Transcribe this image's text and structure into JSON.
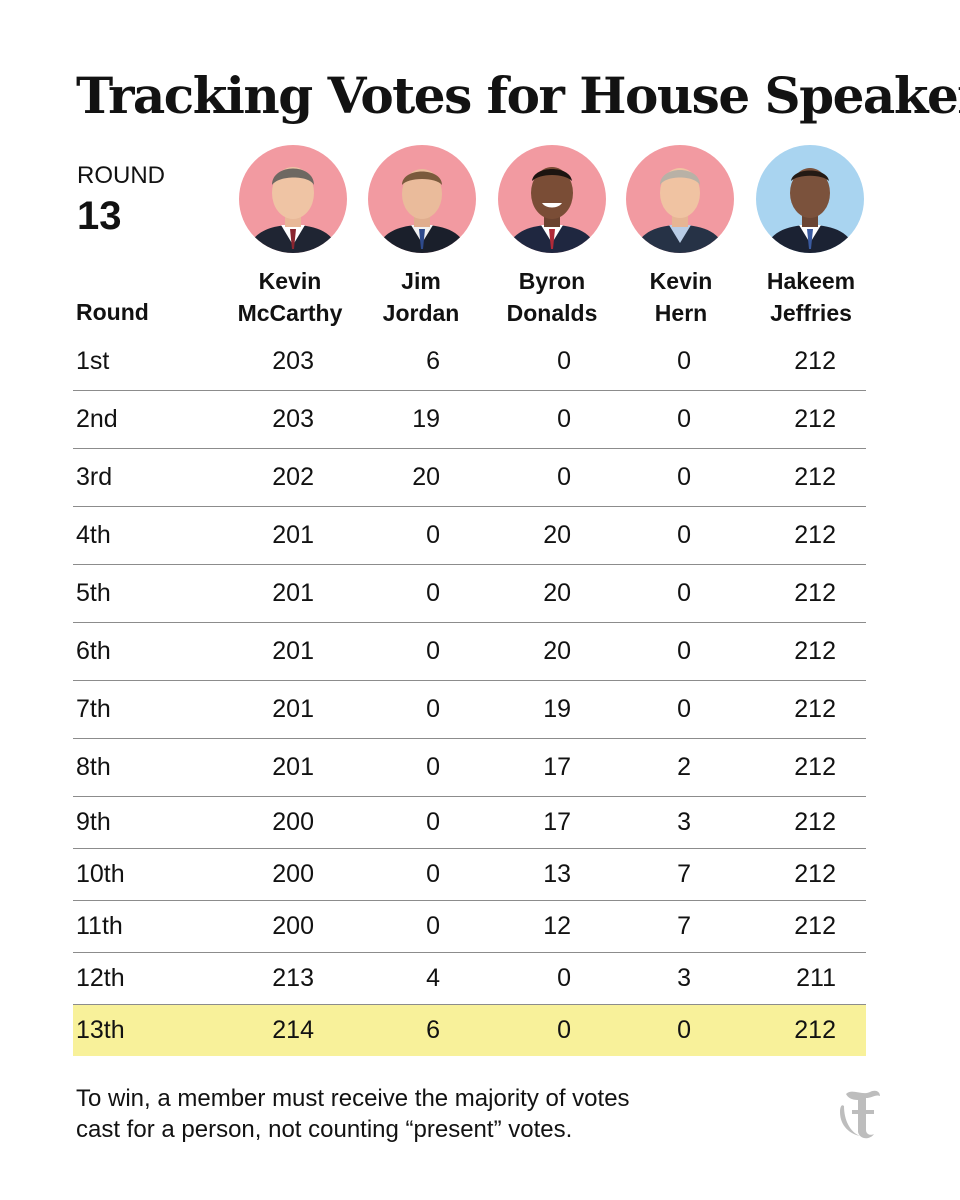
{
  "title": "Tracking Votes for House Speaker",
  "round_label": "ROUND",
  "round_number": "13",
  "round_column_header": "Round",
  "colors": {
    "republican_bg": "#f29aa1",
    "democrat_bg": "#a9d4f0",
    "highlight_row": "#f8f19a",
    "rule": "#8c8c8c"
  },
  "candidates": [
    {
      "first": "Kevin",
      "last": "McCarthy",
      "party_color": "#f29aa1",
      "photo": "portrait-kevin-mccarthy"
    },
    {
      "first": "Jim",
      "last": "Jordan",
      "party_color": "#f29aa1",
      "photo": "portrait-jim-jordan"
    },
    {
      "first": "Byron",
      "last": "Donalds",
      "party_color": "#f29aa1",
      "photo": "portrait-byron-donalds"
    },
    {
      "first": "Kevin",
      "last": "Hern",
      "party_color": "#f29aa1",
      "photo": "portrait-kevin-hern"
    },
    {
      "first": "Hakeem",
      "last": "Jeffries",
      "party_color": "#a9d4f0",
      "photo": "portrait-hakeem-jeffries"
    }
  ],
  "chart_data": {
    "type": "table",
    "title": "Tracking Votes for House Speaker",
    "columns": [
      "Round",
      "Kevin McCarthy",
      "Jim Jordan",
      "Byron Donalds",
      "Kevin Hern",
      "Hakeem Jeffries"
    ],
    "rows": [
      [
        "1st",
        "203",
        "6",
        "0",
        "0",
        "212"
      ],
      [
        "2nd",
        "203",
        "19",
        "0",
        "0",
        "212"
      ],
      [
        "3rd",
        "202",
        "20",
        "0",
        "0",
        "212"
      ],
      [
        "4th",
        "201",
        "0",
        "20",
        "0",
        "212"
      ],
      [
        "5th",
        "201",
        "0",
        "20",
        "0",
        "212"
      ],
      [
        "6th",
        "201",
        "0",
        "20",
        "0",
        "212"
      ],
      [
        "7th",
        "201",
        "0",
        "19",
        "0",
        "212"
      ],
      [
        "8th",
        "201",
        "0",
        "17",
        "2",
        "212"
      ],
      [
        "9th",
        "200",
        "0",
        "17",
        "3",
        "212"
      ],
      [
        "10th",
        "200",
        "0",
        "13",
        "7",
        "212"
      ],
      [
        "11th",
        "200",
        "0",
        "12",
        "7",
        "212"
      ],
      [
        "12th",
        "213",
        "4",
        "0",
        "3",
        "211"
      ],
      [
        "13th",
        "214",
        "6",
        "0",
        "0",
        "212"
      ]
    ],
    "highlighted_row": "13th"
  },
  "note": {
    "line1": "To win, a member must receive the majority of votes",
    "line2": "cast for a person, not counting “present” votes."
  },
  "logo": "nyt-t-logo"
}
